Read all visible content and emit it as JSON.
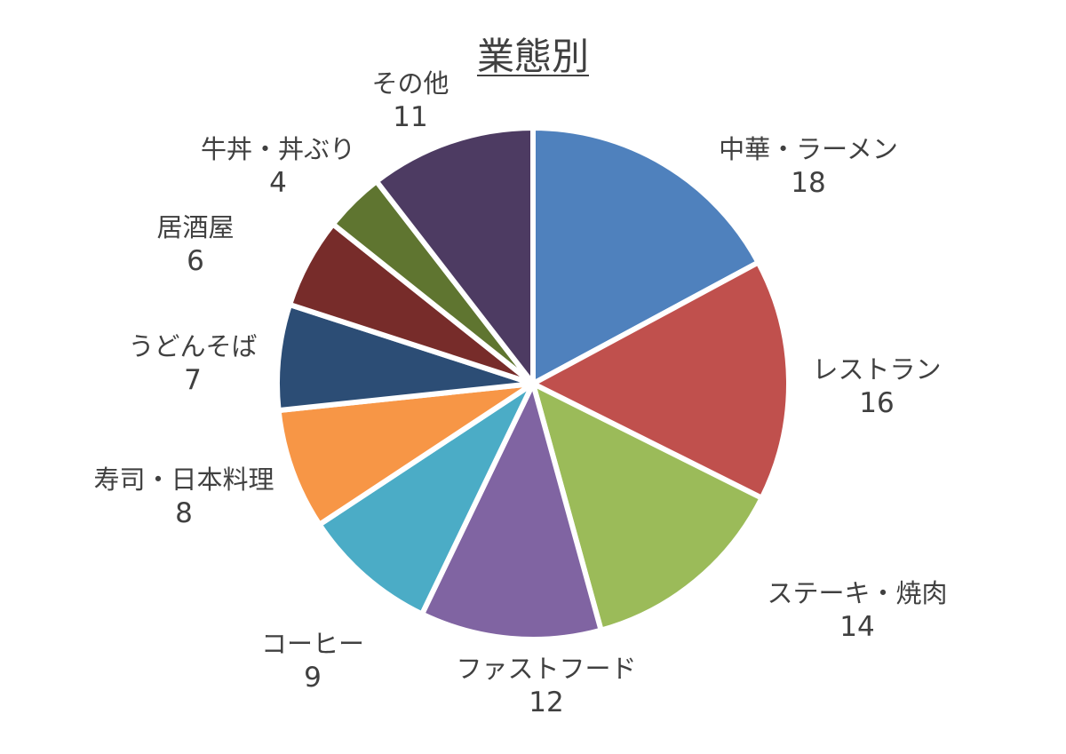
{
  "chart_data": {
    "type": "pie",
    "title": "業態別",
    "categories": [
      "中華・ラーメン",
      "レストラン",
      "ステーキ・焼肉",
      "ファストフード",
      "コーヒー",
      "寿司・日本料理",
      "うどんそば",
      "居酒屋",
      "牛丼・丼ぶり",
      "その他"
    ],
    "values": [
      18,
      16,
      14,
      12,
      9,
      8,
      7,
      6,
      4,
      11
    ],
    "colors": [
      "#4F81BD",
      "#C0504D",
      "#9BBB59",
      "#8064A2",
      "#4BACC6",
      "#F79646",
      "#2C4D75",
      "#772C2A",
      "#5F7530",
      "#4D3B62"
    ],
    "legend": "none",
    "data_labels": "category and value"
  }
}
